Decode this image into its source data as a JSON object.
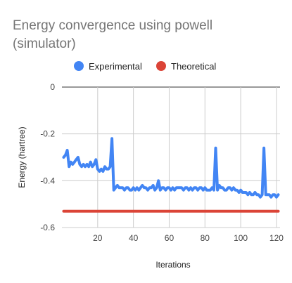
{
  "chart_data": {
    "type": "line",
    "title": "Energy convergence using powell",
    "title_line2": "(simulator)",
    "xlabel": "Iterations",
    "ylabel": "Energy (hartree)",
    "xlim": [
      0,
      122
    ],
    "ylim": [
      -0.6,
      0
    ],
    "x_ticks": [
      20,
      40,
      60,
      80,
      100,
      120
    ],
    "y_ticks": [
      0,
      -0.2,
      -0.4,
      -0.6
    ],
    "y_tick_labels": [
      "0",
      "-0.2",
      "-0.4",
      "-0.6"
    ],
    "grid": true,
    "legend_position": "top",
    "series": [
      {
        "name": "Experimental",
        "color": "#4285F4",
        "x": [
          1,
          2,
          3,
          4,
          5,
          6,
          7,
          8,
          9,
          10,
          11,
          12,
          13,
          14,
          15,
          16,
          17,
          18,
          19,
          20,
          21,
          22,
          23,
          24,
          25,
          26,
          27,
          28,
          29,
          30,
          31,
          32,
          33,
          34,
          35,
          36,
          37,
          38,
          39,
          40,
          41,
          42,
          43,
          44,
          45,
          46,
          47,
          48,
          49,
          50,
          51,
          52,
          53,
          54,
          55,
          56,
          57,
          58,
          59,
          60,
          61,
          62,
          63,
          64,
          65,
          66,
          67,
          68,
          69,
          70,
          71,
          72,
          73,
          74,
          75,
          76,
          77,
          78,
          79,
          80,
          81,
          82,
          83,
          84,
          85,
          86,
          87,
          88,
          89,
          90,
          91,
          92,
          93,
          94,
          95,
          96,
          97,
          98,
          99,
          100,
          101,
          102,
          103,
          104,
          105,
          106,
          107,
          108,
          109,
          110,
          111,
          112,
          113,
          114,
          115,
          116,
          117,
          118,
          119,
          120,
          121
        ],
        "values": [
          -0.3,
          -0.29,
          -0.27,
          -0.34,
          -0.32,
          -0.33,
          -0.32,
          -0.31,
          -0.3,
          -0.33,
          -0.34,
          -0.33,
          -0.34,
          -0.33,
          -0.34,
          -0.32,
          -0.34,
          -0.33,
          -0.31,
          -0.35,
          -0.36,
          -0.35,
          -0.36,
          -0.34,
          -0.35,
          -0.35,
          -0.34,
          -0.22,
          -0.44,
          -0.43,
          -0.42,
          -0.43,
          -0.43,
          -0.43,
          -0.44,
          -0.43,
          -0.43,
          -0.44,
          -0.44,
          -0.43,
          -0.44,
          -0.43,
          -0.44,
          -0.43,
          -0.42,
          -0.43,
          -0.43,
          -0.44,
          -0.43,
          -0.43,
          -0.42,
          -0.44,
          -0.43,
          -0.4,
          -0.44,
          -0.43,
          -0.43,
          -0.44,
          -0.43,
          -0.43,
          -0.44,
          -0.43,
          -0.44,
          -0.43,
          -0.43,
          -0.43,
          -0.43,
          -0.44,
          -0.43,
          -0.43,
          -0.44,
          -0.43,
          -0.44,
          -0.43,
          -0.43,
          -0.44,
          -0.43,
          -0.43,
          -0.44,
          -0.43,
          -0.44,
          -0.44,
          -0.44,
          -0.43,
          -0.44,
          -0.26,
          -0.44,
          -0.42,
          -0.43,
          -0.43,
          -0.44,
          -0.44,
          -0.43,
          -0.43,
          -0.44,
          -0.43,
          -0.44,
          -0.44,
          -0.45,
          -0.44,
          -0.45,
          -0.45,
          -0.45,
          -0.46,
          -0.45,
          -0.46,
          -0.46,
          -0.45,
          -0.46,
          -0.46,
          -0.47,
          -0.46,
          -0.26,
          -0.46,
          -0.46,
          -0.46,
          -0.47,
          -0.46,
          -0.46,
          -0.47,
          -0.46
        ]
      },
      {
        "name": "Theoretical",
        "color": "#DB4437",
        "x": [
          1,
          121
        ],
        "values": [
          -0.53,
          -0.53
        ]
      }
    ]
  }
}
